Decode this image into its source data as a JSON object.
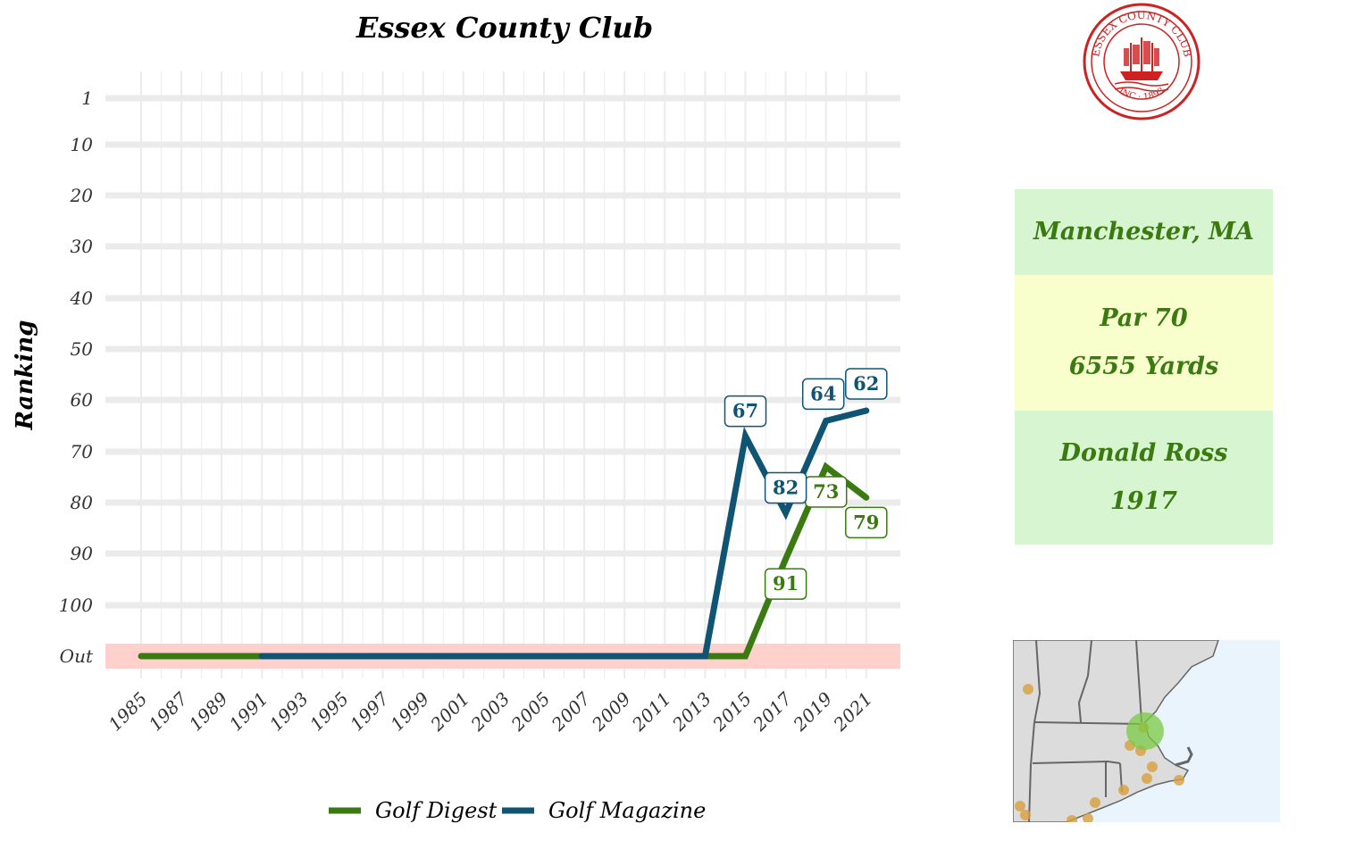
{
  "chart_data": {
    "type": "line",
    "title": "Essex County Club",
    "xlabel": "",
    "ylabel": "Ranking",
    "x_ticks": [
      "1985",
      "1987",
      "1989",
      "1991",
      "1993",
      "1995",
      "1997",
      "1999",
      "2001",
      "2003",
      "2005",
      "2007",
      "2009",
      "2011",
      "2013",
      "2015",
      "2017",
      "2019",
      "2021"
    ],
    "y_ticks": [
      "1",
      "10",
      "20",
      "30",
      "40",
      "50",
      "60",
      "70",
      "80",
      "90",
      "100",
      "Out"
    ],
    "y_reversed": true,
    "out_band_color": "#ffd0cc",
    "grid": true,
    "legend_position": "bottom",
    "series": [
      {
        "name": "Golf Digest",
        "color": "#3a7a10",
        "points": [
          {
            "x": 1985,
            "y": "Out"
          },
          {
            "x": 2015,
            "y": "Out"
          },
          {
            "x": 2017,
            "y": 91
          },
          {
            "x": 2019,
            "y": 73
          },
          {
            "x": 2021,
            "y": 79
          }
        ],
        "labels": [
          {
            "x": 2017,
            "y": 91,
            "text": "91"
          },
          {
            "x": 2019,
            "y": 73,
            "text": "73"
          },
          {
            "x": 2021,
            "y": 79,
            "text": "79"
          }
        ]
      },
      {
        "name": "Golf Magazine",
        "color": "#0f5573",
        "points": [
          {
            "x": 1991,
            "y": "Out"
          },
          {
            "x": 2013,
            "y": "Out"
          },
          {
            "x": 2015,
            "y": 67
          },
          {
            "x": 2017,
            "y": 82
          },
          {
            "x": 2019,
            "y": 64
          },
          {
            "x": 2021,
            "y": 62
          }
        ],
        "labels": [
          {
            "x": 2015,
            "y": 67,
            "text": "67"
          },
          {
            "x": 2017,
            "y": 82,
            "text": "82"
          },
          {
            "x": 2019,
            "y": 64,
            "text": "64"
          },
          {
            "x": 2021,
            "y": 62,
            "text": "62"
          }
        ]
      }
    ]
  },
  "info": {
    "location": "Manchester, MA",
    "par": "Par 70",
    "yards": "6555 Yards",
    "architect": "Donald Ross",
    "year": "1917",
    "text_color": "#3a7a10"
  },
  "logo": {
    "lettering": "ESSEX COUNTY CLUB INC 1893",
    "color": "#cc2222"
  },
  "map": {
    "land_color": "#dcdcdc",
    "water_color": "#eaf4fd",
    "highlight_color": "#7ac943",
    "other_courses_color": "#d9a040"
  }
}
